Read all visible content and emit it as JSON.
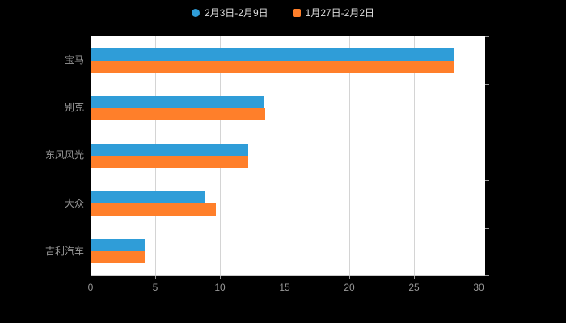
{
  "chart_data": {
    "type": "bar",
    "orientation": "horizontal",
    "title": "",
    "categories": [
      "宝马",
      "别克",
      "东风风光",
      "大众",
      "吉利汽车"
    ],
    "series": [
      {
        "name": "2月3日-2月9日",
        "color": "#2f9dd8",
        "swatch": "circle",
        "values": [
          28.1,
          13.4,
          12.2,
          8.8,
          4.2
        ]
      },
      {
        "name": "1月27日-2月2日",
        "color": "#ff7f2a",
        "swatch": "square",
        "values": [
          28.1,
          13.5,
          12.2,
          9.7,
          4.2
        ]
      }
    ],
    "xticks": [
      0,
      5,
      10,
      15,
      20,
      25,
      30
    ],
    "xlim": [
      0,
      30.5
    ],
    "xlabel": "",
    "ylabel": "",
    "grid": true,
    "legend_position": "top",
    "background_color": "#000000",
    "plot_background_color": "#ffffff"
  }
}
